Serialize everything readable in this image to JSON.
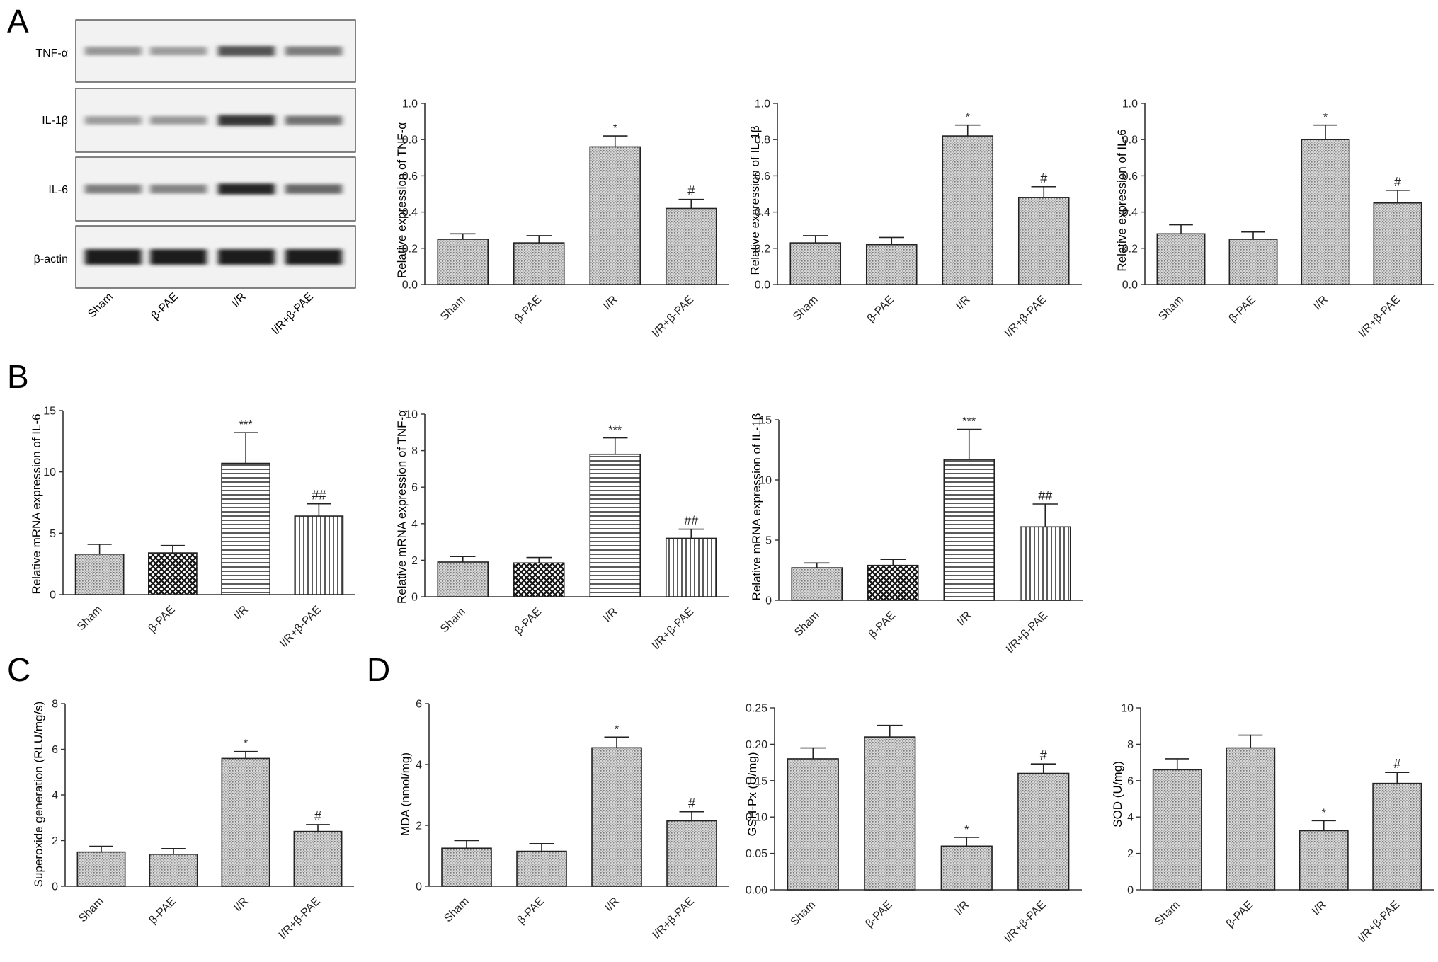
{
  "panel_labels": [
    "A",
    "B",
    "C",
    "D"
  ],
  "blot": {
    "proteins": [
      "TNF-α",
      "IL-1β",
      "IL-6",
      "β-actin"
    ],
    "lanes": [
      "Sham",
      "β-PAE",
      "I/R",
      "I/R+β-PAE"
    ],
    "band_intensity": [
      [
        0.35,
        0.32,
        0.72,
        0.5
      ],
      [
        0.32,
        0.34,
        0.88,
        0.55
      ],
      [
        0.48,
        0.45,
        0.95,
        0.6
      ],
      [
        1.0,
        1.0,
        1.0,
        1.0
      ]
    ]
  },
  "chart_data": [
    {
      "type": "bar",
      "panel": "A",
      "categories": [
        "Sham",
        "β-PAE",
        "I/R",
        "I/R+β-PAE"
      ],
      "values": [
        0.25,
        0.23,
        0.76,
        0.42
      ],
      "errors": [
        0.03,
        0.04,
        0.06,
        0.05
      ],
      "annotations": [
        "",
        "",
        "*",
        "#"
      ],
      "patterns": [
        "dots",
        "dots",
        "dots",
        "dots"
      ],
      "ylabel": "Relative expression of TNF-α",
      "ylim": [
        0,
        1.0
      ],
      "yticks": [
        "0.0",
        "0.2",
        "0.4",
        "0.6",
        "0.8",
        "1.0"
      ]
    },
    {
      "type": "bar",
      "panel": "A",
      "categories": [
        "Sham",
        "β-PAE",
        "I/R",
        "I/R+β-PAE"
      ],
      "values": [
        0.23,
        0.22,
        0.82,
        0.48
      ],
      "errors": [
        0.04,
        0.04,
        0.06,
        0.06
      ],
      "annotations": [
        "",
        "",
        "*",
        "#"
      ],
      "patterns": [
        "dots",
        "dots",
        "dots",
        "dots"
      ],
      "ylabel": "Relative expression of IL-1β",
      "ylim": [
        0,
        1.0
      ],
      "yticks": [
        "0.0",
        "0.2",
        "0.4",
        "0.6",
        "0.8",
        "1.0"
      ]
    },
    {
      "type": "bar",
      "panel": "A",
      "categories": [
        "Sham",
        "β-PAE",
        "I/R",
        "I/R+β-PAE"
      ],
      "values": [
        0.28,
        0.25,
        0.8,
        0.45
      ],
      "errors": [
        0.05,
        0.04,
        0.08,
        0.07
      ],
      "annotations": [
        "",
        "",
        "*",
        "#"
      ],
      "patterns": [
        "dots",
        "dots",
        "dots",
        "dots"
      ],
      "ylabel": "Relative expression of IL-6",
      "ylim": [
        0,
        1.0
      ],
      "yticks": [
        "0.0",
        "0.2",
        "0.4",
        "0.6",
        "0.8",
        "1.0"
      ]
    },
    {
      "type": "bar",
      "panel": "B",
      "categories": [
        "Sham",
        "β-PAE",
        "I/R",
        "I/R+β-PAE"
      ],
      "values": [
        3.3,
        3.4,
        10.7,
        6.4
      ],
      "errors": [
        0.8,
        0.6,
        2.5,
        1.0
      ],
      "annotations": [
        "",
        "",
        "***",
        "##"
      ],
      "patterns": [
        "dots",
        "cross",
        "hlines",
        "vlines"
      ],
      "ylabel": "Relative mRNA expression of IL-6",
      "ylim": [
        0,
        15
      ],
      "yticks": [
        "0",
        "5",
        "10",
        "15"
      ]
    },
    {
      "type": "bar",
      "panel": "B",
      "categories": [
        "Sham",
        "β-PAE",
        "I/R",
        "I/R+β-PAE"
      ],
      "values": [
        1.9,
        1.85,
        7.8,
        3.2
      ],
      "errors": [
        0.3,
        0.3,
        0.9,
        0.5
      ],
      "annotations": [
        "",
        "",
        "***",
        "##"
      ],
      "patterns": [
        "dots",
        "cross",
        "hlines",
        "vlines"
      ],
      "ylabel": "Relative mRNA expression of TNF-α",
      "ylim": [
        0,
        10
      ],
      "yticks": [
        "0",
        "2",
        "4",
        "6",
        "8",
        "10"
      ]
    },
    {
      "type": "bar",
      "panel": "B",
      "categories": [
        "Sham",
        "β-PAE",
        "I/R",
        "I/R+β-PAE"
      ],
      "values": [
        2.7,
        2.9,
        11.7,
        6.1
      ],
      "errors": [
        0.4,
        0.5,
        2.5,
        1.9
      ],
      "annotations": [
        "",
        "",
        "***",
        "##"
      ],
      "patterns": [
        "dots",
        "cross",
        "hlines",
        "vlines"
      ],
      "ylabel": "Relative mRNA expression of IL-1β",
      "ylim": [
        0,
        15
      ],
      "yticks": [
        "0",
        "5",
        "10",
        "15"
      ]
    },
    {
      "type": "bar",
      "panel": "C",
      "categories": [
        "Sham",
        "β-PAE",
        "I/R",
        "I/R+β-PAE"
      ],
      "values": [
        1.5,
        1.4,
        5.6,
        2.4
      ],
      "errors": [
        0.25,
        0.25,
        0.3,
        0.3
      ],
      "annotations": [
        "",
        "",
        "*",
        "#"
      ],
      "patterns": [
        "dots",
        "dots",
        "dots",
        "dots"
      ],
      "ylabel": "Superoxide generation (RLU/mg/s)",
      "ylim": [
        0,
        8
      ],
      "yticks": [
        "0",
        "2",
        "4",
        "6",
        "8"
      ]
    },
    {
      "type": "bar",
      "panel": "D",
      "categories": [
        "Sham",
        "β-PAE",
        "I/R",
        "I/R+β-PAE"
      ],
      "values": [
        1.25,
        1.15,
        4.55,
        2.15
      ],
      "errors": [
        0.25,
        0.25,
        0.35,
        0.3
      ],
      "annotations": [
        "",
        "",
        "*",
        "#"
      ],
      "patterns": [
        "dots",
        "dots",
        "dots",
        "dots"
      ],
      "ylabel": "MDA (nmol/mg)",
      "ylim": [
        0,
        6
      ],
      "yticks": [
        "0",
        "2",
        "4",
        "6"
      ]
    },
    {
      "type": "bar",
      "panel": "D",
      "categories": [
        "Sham",
        "β-PAE",
        "I/R",
        "I/R+β-PAE"
      ],
      "values": [
        0.18,
        0.21,
        0.06,
        0.16
      ],
      "errors": [
        0.015,
        0.016,
        0.012,
        0.013
      ],
      "annotations": [
        "",
        "",
        "*",
        "#"
      ],
      "patterns": [
        "dots",
        "dots",
        "dots",
        "dots"
      ],
      "ylabel": "GSH-Px (U/mg)",
      "ylim": [
        0,
        0.25
      ],
      "yticks": [
        "0.00",
        "0.05",
        "0.10",
        "0.15",
        "0.20",
        "0.25"
      ]
    },
    {
      "type": "bar",
      "panel": "D",
      "categories": [
        "Sham",
        "β-PAE",
        "I/R",
        "I/R+β-PAE"
      ],
      "values": [
        6.6,
        7.8,
        3.25,
        5.85
      ],
      "errors": [
        0.6,
        0.7,
        0.55,
        0.6
      ],
      "annotations": [
        "",
        "",
        "*",
        "#"
      ],
      "patterns": [
        "dots",
        "dots",
        "dots",
        "dots"
      ],
      "ylabel": "SOD (U/mg)",
      "ylim": [
        0,
        10
      ],
      "yticks": [
        "0",
        "2",
        "4",
        "6",
        "8",
        "10"
      ]
    }
  ]
}
